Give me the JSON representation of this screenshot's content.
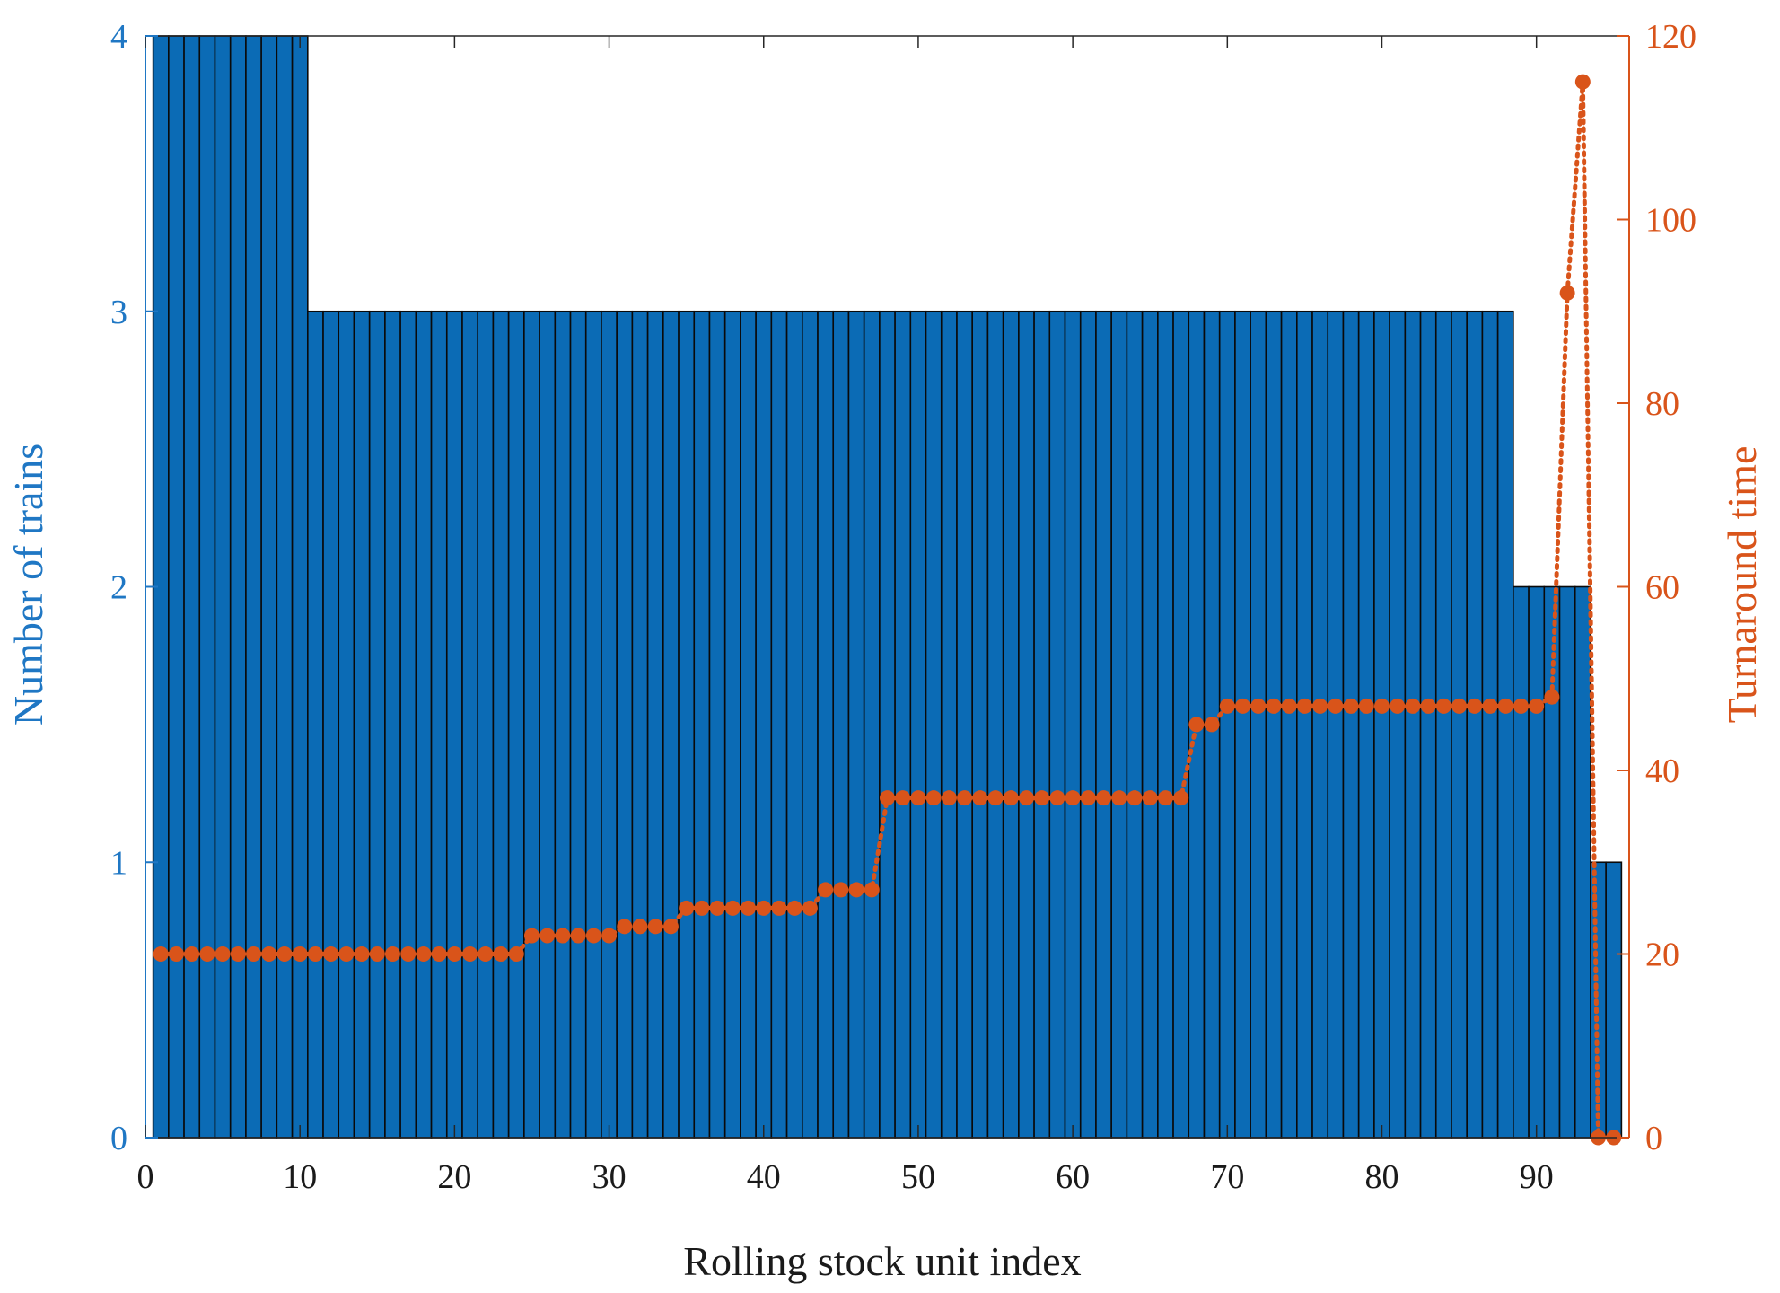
{
  "chart_data": {
    "type": "bar",
    "xlabel": "Rolling stock unit index",
    "ylabel_left": "Number of trains",
    "ylabel_right": "Turnaround time",
    "xlim": [
      0,
      96
    ],
    "xticks": [
      0,
      10,
      20,
      30,
      40,
      50,
      60,
      70,
      80,
      90
    ],
    "ylim_left": [
      0,
      4
    ],
    "yticks_left": [
      0,
      1,
      2,
      3,
      4
    ],
    "ylim_right": [
      0,
      120
    ],
    "yticks_right": [
      0,
      20,
      40,
      60,
      80,
      100,
      120
    ],
    "grid": false,
    "colors": {
      "bars": "#0b6bb5",
      "bar_edge": "#0a0a0a",
      "left_axis": "#1f77c4",
      "right_axis": "#d9541a",
      "line": "#d9541a"
    },
    "series": [
      {
        "type": "bar",
        "axis": "left",
        "x": [
          1,
          2,
          3,
          4,
          5,
          6,
          7,
          8,
          9,
          10,
          11,
          12,
          13,
          14,
          15,
          16,
          17,
          18,
          19,
          20,
          21,
          22,
          23,
          24,
          25,
          26,
          27,
          28,
          29,
          30,
          31,
          32,
          33,
          34,
          35,
          36,
          37,
          38,
          39,
          40,
          41,
          42,
          43,
          44,
          45,
          46,
          47,
          48,
          49,
          50,
          51,
          52,
          53,
          54,
          55,
          56,
          57,
          58,
          59,
          60,
          61,
          62,
          63,
          64,
          65,
          66,
          67,
          68,
          69,
          70,
          71,
          72,
          73,
          74,
          75,
          76,
          77,
          78,
          79,
          80,
          81,
          82,
          83,
          84,
          85,
          86,
          87,
          88,
          89,
          90,
          91,
          92,
          93,
          94,
          95
        ],
        "values": [
          4,
          4,
          4,
          4,
          4,
          4,
          4,
          4,
          4,
          4,
          3,
          3,
          3,
          3,
          3,
          3,
          3,
          3,
          3,
          3,
          3,
          3,
          3,
          3,
          3,
          3,
          3,
          3,
          3,
          3,
          3,
          3,
          3,
          3,
          3,
          3,
          3,
          3,
          3,
          3,
          3,
          3,
          3,
          3,
          3,
          3,
          3,
          3,
          3,
          3,
          3,
          3,
          3,
          3,
          3,
          3,
          3,
          3,
          3,
          3,
          3,
          3,
          3,
          3,
          3,
          3,
          3,
          3,
          3,
          3,
          3,
          3,
          3,
          3,
          3,
          3,
          3,
          3,
          3,
          3,
          3,
          3,
          3,
          3,
          3,
          3,
          3,
          3,
          2,
          2,
          2,
          2,
          2,
          1,
          1
        ]
      },
      {
        "type": "line",
        "axis": "right",
        "style": "dotted-with-markers",
        "x": [
          1,
          2,
          3,
          4,
          5,
          6,
          7,
          8,
          9,
          10,
          11,
          12,
          13,
          14,
          15,
          16,
          17,
          18,
          19,
          20,
          21,
          22,
          23,
          24,
          25,
          26,
          27,
          28,
          29,
          30,
          31,
          32,
          33,
          34,
          35,
          36,
          37,
          38,
          39,
          40,
          41,
          42,
          43,
          44,
          45,
          46,
          47,
          48,
          49,
          50,
          51,
          52,
          53,
          54,
          55,
          56,
          57,
          58,
          59,
          60,
          61,
          62,
          63,
          64,
          65,
          66,
          67,
          68,
          69,
          70,
          71,
          72,
          73,
          74,
          75,
          76,
          77,
          78,
          79,
          80,
          81,
          82,
          83,
          84,
          85,
          86,
          87,
          88,
          89,
          90,
          91,
          92,
          93,
          94,
          95
        ],
        "values": [
          20,
          20,
          20,
          20,
          20,
          20,
          20,
          20,
          20,
          20,
          20,
          20,
          20,
          20,
          20,
          20,
          20,
          20,
          20,
          20,
          20,
          20,
          20,
          20,
          22,
          22,
          22,
          22,
          22,
          22,
          23,
          23,
          23,
          23,
          25,
          25,
          25,
          25,
          25,
          25,
          25,
          25,
          25,
          27,
          27,
          27,
          27,
          37,
          37,
          37,
          37,
          37,
          37,
          37,
          37,
          37,
          37,
          37,
          37,
          37,
          37,
          37,
          37,
          37,
          37,
          37,
          37,
          45,
          45,
          47,
          47,
          47,
          47,
          47,
          47,
          47,
          47,
          47,
          47,
          47,
          47,
          47,
          47,
          47,
          47,
          47,
          47,
          47,
          47,
          47,
          48,
          92,
          115,
          0,
          0
        ]
      }
    ]
  }
}
